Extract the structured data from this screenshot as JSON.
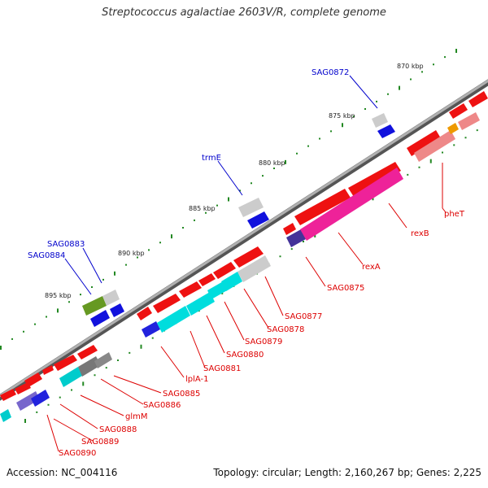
{
  "title": "Streptococcus agalactiae 2603V/R, complete genome",
  "footer": {
    "accession": "Accession: NC_004116",
    "summary": "Topology: circular; Length: 2,160,267 bp; Genes: 2,225"
  },
  "colors": {
    "forward_cds": "#ee1111",
    "rrna_like": "#00dddd",
    "reverse_cds": "#1111dd",
    "gene_gray": "#c8c8c8",
    "dark_gray": "#777777",
    "pink": "#ee2299",
    "salmon": "#ee8888",
    "olive": "#669922",
    "orange": "#ee9900",
    "backbone": "#888888",
    "tick_green": "#228822",
    "label_red": "#dd0000",
    "label_blue": "#0000cc"
  },
  "scale": {
    "ticks": [
      "870 kbp",
      "875 kbp",
      "880 kbp",
      "885 kbp",
      "890 kbp",
      "895 kbp"
    ]
  },
  "labels": {
    "top": [
      "SAG0872",
      "trmE",
      "SAG0883",
      "SAG0884"
    ],
    "bottom": [
      "pheT",
      "rexB",
      "rexA",
      "SAG0875",
      "SAG0877",
      "SAG0878",
      "SAG0879",
      "SAG0880",
      "SAG0881",
      "lplA-1",
      "SAG0885",
      "SAG0886",
      "glmM",
      "SAG0888",
      "SAG0889",
      "SAG0890"
    ]
  }
}
